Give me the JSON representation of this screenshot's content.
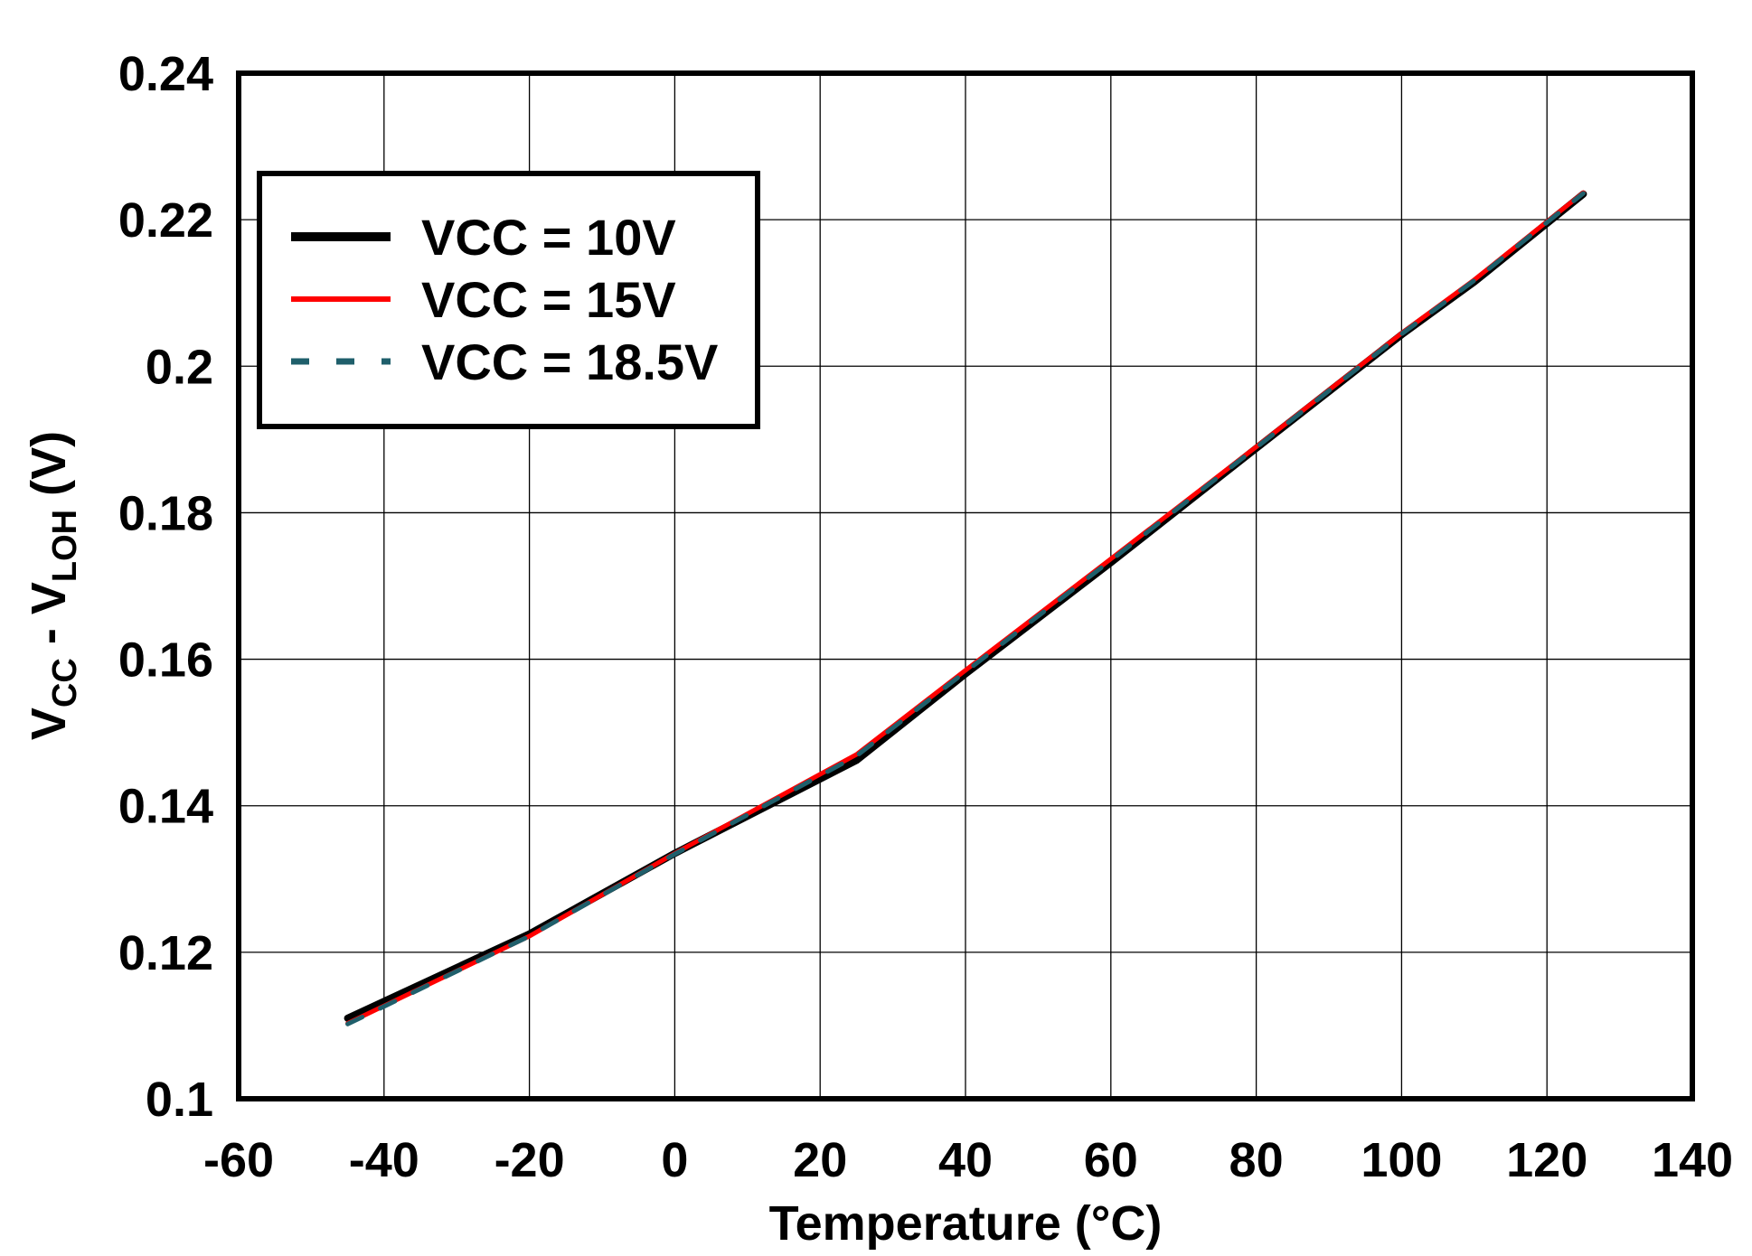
{
  "chart_data": {
    "type": "line",
    "title": "",
    "xlabel": "Temperature (°C)",
    "ylabel": {
      "main": "V",
      "sub1": "CC",
      "mid": " - V",
      "sub2": "LOH",
      "end": " (V)"
    },
    "xlim": [
      -60,
      140
    ],
    "ylim": [
      0.1,
      0.24
    ],
    "xticks": [
      "-60",
      "-40",
      "-20",
      "0",
      "20",
      "40",
      "60",
      "80",
      "100",
      "120",
      "140"
    ],
    "yticks": [
      "0.1",
      "0.12",
      "0.14",
      "0.16",
      "0.18",
      "0.2",
      "0.22",
      "0.24"
    ],
    "grid": true,
    "legend_position": "top-left",
    "series": [
      {
        "name": "VCC = 10V",
        "color": "#000000",
        "style": "solid",
        "x": [
          -45,
          -20,
          0,
          25,
          40,
          60,
          80,
          100,
          110,
          125
        ],
        "y": [
          0.111,
          0.1225,
          0.1335,
          0.1462,
          0.158,
          0.1732,
          0.1888,
          0.2043,
          0.2115,
          0.2235
        ]
      },
      {
        "name": "VCC = 15V",
        "color": "#ff0000",
        "style": "solid",
        "x": [
          -45,
          -20,
          0,
          25,
          40,
          60,
          80,
          100,
          110,
          125
        ],
        "y": [
          0.1103,
          0.1222,
          0.1335,
          0.147,
          0.1585,
          0.1737,
          0.189,
          0.2045,
          0.2118,
          0.2237
        ]
      },
      {
        "name": "VCC = 18.5V",
        "color": "#1f5f6b",
        "style": "dashed",
        "x": [
          -45,
          -20,
          0,
          25,
          40,
          60,
          80,
          100,
          110,
          125
        ],
        "y": [
          0.1102,
          0.1222,
          0.1334,
          0.1468,
          0.1583,
          0.1735,
          0.1889,
          0.2044,
          0.2117,
          0.2236
        ]
      }
    ]
  }
}
